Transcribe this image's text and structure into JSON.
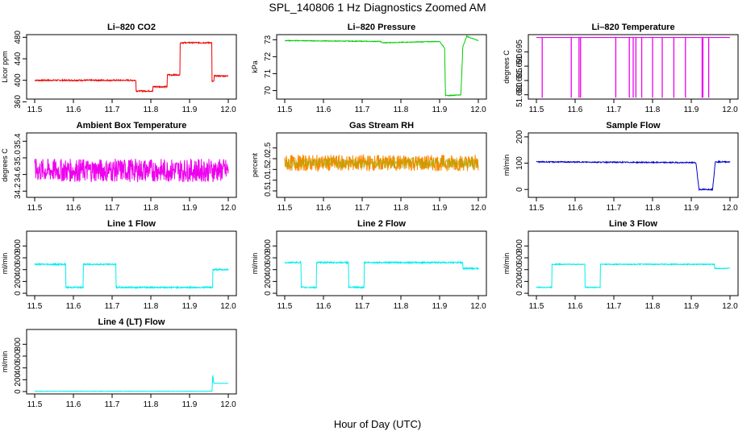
{
  "figure": {
    "title": "SPL_140806  1 Hz Diagnostics Zoomed AM",
    "xlabel": "Hour of Day (UTC)"
  },
  "chart_data": [
    {
      "type": "line",
      "title": "Li–820 CO2",
      "ylabel": "Licor ppm",
      "color": "#ee0000",
      "xlim": [
        11.5,
        12.0
      ],
      "ylim": [
        365,
        485
      ],
      "yticks": [
        "360",
        "400",
        "440",
        "480"
      ],
      "ytick_values": [
        360,
        400,
        440,
        480
      ],
      "xticks": [
        "11.5",
        "11.6",
        "11.7",
        "11.8",
        "11.9",
        "12.0"
      ],
      "noise": 1.2,
      "x": [
        11.5,
        11.762,
        11.762,
        11.805,
        11.805,
        11.842,
        11.842,
        11.875,
        11.875,
        11.958,
        11.958,
        11.963,
        11.963,
        12.0
      ],
      "y": [
        400,
        400,
        380,
        380,
        388,
        388,
        410,
        410,
        470,
        470,
        398,
        398,
        408,
        408
      ]
    },
    {
      "type": "line",
      "title": "Li–820 Pressure",
      "ylabel": "kPa",
      "color": "#00cc00",
      "xlim": [
        11.5,
        12.0
      ],
      "ylim": [
        69.5,
        73.3
      ],
      "yticks": [
        "70",
        "71",
        "72",
        "73"
      ],
      "ytick_values": [
        70,
        71,
        72,
        73
      ],
      "xticks": [
        "11.5",
        "11.6",
        "11.7",
        "11.8",
        "11.9",
        "12.0"
      ],
      "noise": 0.02,
      "x": [
        11.5,
        11.748,
        11.752,
        11.9,
        11.913,
        11.915,
        11.955,
        11.96,
        11.97,
        12.0
      ],
      "y": [
        72.95,
        72.9,
        72.82,
        72.9,
        72.5,
        69.7,
        69.75,
        72.6,
        73.2,
        72.95
      ]
    },
    {
      "type": "line",
      "title": "Li–820 Temperature",
      "ylabel": "degrees C",
      "color": "#ee00ee",
      "xlim": [
        11.5,
        12.0
      ],
      "ylim": [
        51.6785,
        51.701
      ],
      "yticks": [
        "51.680",
        "51.685",
        "51.690",
        "51.695"
      ],
      "ytick_values": [
        51.68,
        51.685,
        51.69,
        51.695
      ],
      "xticks": [
        "11.5",
        "11.6",
        "11.7",
        "11.8",
        "11.9",
        "12.0"
      ],
      "noise": 0,
      "baseline": 51.7,
      "low": 51.679,
      "spikes": [
        11.515,
        11.59,
        11.61,
        11.614,
        11.705,
        11.74,
        11.75,
        11.757,
        11.772,
        11.8,
        11.825,
        11.855,
        11.885,
        11.928,
        11.93,
        11.945
      ]
    },
    {
      "type": "line",
      "title": "Ambient Box Temperature",
      "ylabel": "degrees C",
      "color": "#ee00ee",
      "xlim": [
        11.5,
        12.0
      ],
      "ylim": [
        34.05,
        35.6
      ],
      "yticks": [
        "34.2",
        "34.6",
        "35.0",
        "35.4"
      ],
      "ytick_values": [
        34.2,
        34.6,
        35.0,
        35.4
      ],
      "xticks": [
        "11.5",
        "11.6",
        "11.7",
        "11.8",
        "11.9",
        "12.0"
      ],
      "noise": 0.28,
      "x": [
        11.5,
        12.0
      ],
      "y": [
        34.7,
        34.7
      ]
    },
    {
      "type": "line",
      "title": "Gas Stream RH",
      "ylabel": "percent",
      "color": "#ff8800",
      "color2": "#aaaa00",
      "xlim": [
        11.5,
        12.0
      ],
      "ylim": [
        0.2,
        3.2
      ],
      "yticks": [
        "0.5",
        "1.0",
        "1.5",
        "2.0",
        "2.5"
      ],
      "ytick_values": [
        0.5,
        1.0,
        1.5,
        2.0,
        2.5
      ],
      "xticks": [
        "11.5",
        "11.6",
        "11.7",
        "11.8",
        "11.9",
        "12.0"
      ],
      "noise": 0.38,
      "x": [
        11.5,
        12.0
      ],
      "y": [
        1.8,
        1.8
      ]
    },
    {
      "type": "line",
      "title": "Sample Flow",
      "ylabel": "ml/min",
      "color": "#0000cc",
      "xlim": [
        11.5,
        12.0
      ],
      "ylim": [
        -30,
        215
      ],
      "yticks": [
        "0",
        "100",
        "200"
      ],
      "ytick_values": [
        0,
        100,
        200
      ],
      "xticks": [
        "11.5",
        "11.6",
        "11.7",
        "11.8",
        "11.9",
        "12.0"
      ],
      "noise": 2,
      "x": [
        11.5,
        11.912,
        11.92,
        11.955,
        11.962,
        12.0
      ],
      "y": [
        105,
        102,
        0,
        0,
        105,
        105
      ]
    },
    {
      "type": "line",
      "title": "Line 1 Flow",
      "ylabel": "ml/min",
      "color": "#00eeee",
      "xlim": [
        11.5,
        12.0
      ],
      "ylim": [
        -40,
        1050
      ],
      "yticks": [
        "0",
        "200",
        "400",
        "600",
        "800"
      ],
      "ytick_values": [
        0,
        200,
        400,
        600,
        800
      ],
      "xticks": [
        "11.5",
        "11.6",
        "11.7",
        "11.8",
        "11.9",
        "12.0"
      ],
      "noise": 12,
      "x": [
        11.5,
        11.58,
        11.58,
        11.625,
        11.625,
        11.71,
        11.71,
        11.96,
        11.96,
        12.0
      ],
      "y": [
        490,
        490,
        100,
        100,
        490,
        490,
        100,
        100,
        400,
        400
      ]
    },
    {
      "type": "line",
      "title": "Line 2 Flow",
      "ylabel": "ml/min",
      "color": "#00eeee",
      "xlim": [
        11.5,
        12.0
      ],
      "ylim": [
        -40,
        1050
      ],
      "yticks": [
        "0",
        "200",
        "400",
        "600",
        "800"
      ],
      "ytick_values": [
        0,
        200,
        400,
        600,
        800
      ],
      "xticks": [
        "11.5",
        "11.6",
        "11.7",
        "11.8",
        "11.9",
        "12.0"
      ],
      "noise": 12,
      "x": [
        11.5,
        11.542,
        11.542,
        11.582,
        11.582,
        11.665,
        11.665,
        11.705,
        11.705,
        11.96,
        11.96,
        12.0
      ],
      "y": [
        520,
        520,
        100,
        100,
        520,
        520,
        100,
        100,
        520,
        520,
        420,
        420
      ]
    },
    {
      "type": "line",
      "title": "Line 3 Flow",
      "ylabel": "ml/min",
      "color": "#00eeee",
      "xlim": [
        11.5,
        12.0
      ],
      "ylim": [
        -40,
        1050
      ],
      "yticks": [
        "0",
        "200",
        "400",
        "600",
        "800"
      ],
      "ytick_values": [
        0,
        200,
        400,
        600,
        800
      ],
      "xticks": [
        "11.5",
        "11.6",
        "11.7",
        "11.8",
        "11.9",
        "12.0"
      ],
      "noise": 8,
      "x": [
        11.5,
        11.54,
        11.54,
        11.625,
        11.625,
        11.665,
        11.665,
        11.96,
        11.96,
        12.0
      ],
      "y": [
        100,
        100,
        490,
        490,
        100,
        100,
        490,
        490,
        420,
        420
      ]
    },
    {
      "type": "line",
      "title": "Line 4 (LT) Flow",
      "ylabel": "ml/min",
      "color": "#00eeee",
      "xlim": [
        11.5,
        12.0
      ],
      "ylim": [
        -40,
        1050
      ],
      "yticks": [
        "0",
        "200",
        "400",
        "600",
        "800"
      ],
      "ytick_values": [
        0,
        200,
        400,
        600,
        800
      ],
      "xticks": [
        "11.5",
        "11.6",
        "11.7",
        "11.8",
        "11.9",
        "12.0"
      ],
      "noise": 3,
      "x": [
        11.5,
        11.958,
        11.96,
        11.962,
        11.965,
        12.0
      ],
      "y": [
        5,
        5,
        300,
        150,
        140,
        140
      ]
    }
  ]
}
